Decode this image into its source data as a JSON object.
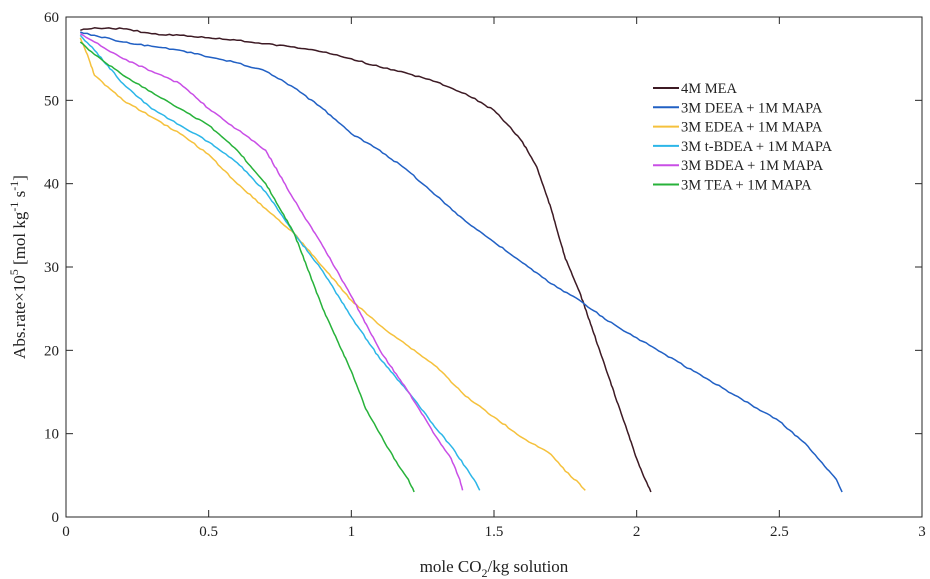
{
  "chart_data": {
    "type": "line",
    "xlabel": {
      "main": "mole CO",
      "sub": "2",
      "rest": "/kg solution"
    },
    "ylabel": {
      "a": "Abs.rate",
      "b": "×10",
      "exp5": "5",
      "c": " [mol kg",
      "expm1a": "-1",
      "d": " s",
      "expm1b": "-1",
      "e": "]"
    },
    "xlim": [
      0,
      3
    ],
    "ylim": [
      0,
      60
    ],
    "xticks": [
      0,
      0.5,
      1,
      1.5,
      2,
      2.5,
      3
    ],
    "xtick_labels": [
      "0",
      "0.5",
      "1",
      "1.5",
      "2",
      "2.5",
      "3"
    ],
    "yticks": [
      0,
      10,
      20,
      30,
      40,
      50,
      60
    ],
    "ytick_labels": [
      "0",
      "10",
      "20",
      "30",
      "40",
      "50",
      "60"
    ],
    "grid": false,
    "legend_position": "top-right",
    "series": [
      {
        "name": "4M MEA",
        "color": "#3d1a24",
        "points": [
          [
            0.05,
            58.4
          ],
          [
            0.1,
            58.7
          ],
          [
            0.2,
            58.6
          ],
          [
            0.3,
            58.0
          ],
          [
            0.4,
            57.8
          ],
          [
            0.5,
            57.5
          ],
          [
            0.6,
            57.2
          ],
          [
            0.7,
            56.8
          ],
          [
            0.8,
            56.4
          ],
          [
            0.9,
            55.8
          ],
          [
            1.0,
            55.0
          ],
          [
            1.1,
            54.0
          ],
          [
            1.2,
            53.2
          ],
          [
            1.3,
            52.2
          ],
          [
            1.4,
            50.8
          ],
          [
            1.5,
            48.8
          ],
          [
            1.55,
            47.0
          ],
          [
            1.6,
            45.0
          ],
          [
            1.65,
            42.0
          ],
          [
            1.7,
            37.0
          ],
          [
            1.75,
            31.0
          ],
          [
            1.8,
            27.0
          ],
          [
            1.85,
            22.0
          ],
          [
            1.9,
            17.0
          ],
          [
            1.95,
            12.0
          ],
          [
            2.0,
            7.0
          ],
          [
            2.03,
            4.5
          ],
          [
            2.05,
            3.0
          ]
        ]
      },
      {
        "name": "3M DEEA + 1M MAPA",
        "color": "#2160c4",
        "points": [
          [
            0.05,
            58.2
          ],
          [
            0.1,
            57.8
          ],
          [
            0.2,
            57.0
          ],
          [
            0.3,
            56.5
          ],
          [
            0.4,
            56.0
          ],
          [
            0.5,
            55.2
          ],
          [
            0.6,
            54.5
          ],
          [
            0.7,
            53.5
          ],
          [
            0.8,
            51.5
          ],
          [
            0.9,
            49.0
          ],
          [
            1.0,
            46.0
          ],
          [
            1.1,
            44.0
          ],
          [
            1.2,
            41.5
          ],
          [
            1.3,
            38.5
          ],
          [
            1.4,
            35.5
          ],
          [
            1.5,
            33.0
          ],
          [
            1.6,
            30.5
          ],
          [
            1.7,
            28.0
          ],
          [
            1.8,
            26.0
          ],
          [
            1.9,
            23.5
          ],
          [
            2.0,
            21.5
          ],
          [
            2.1,
            19.5
          ],
          [
            2.2,
            17.5
          ],
          [
            2.3,
            15.5
          ],
          [
            2.4,
            13.5
          ],
          [
            2.5,
            11.5
          ],
          [
            2.6,
            8.5
          ],
          [
            2.65,
            6.5
          ],
          [
            2.7,
            4.5
          ],
          [
            2.72,
            3.0
          ]
        ]
      },
      {
        "name": "3M EDEA + 1M MAPA",
        "color": "#f5c13c",
        "points": [
          [
            0.05,
            57.5
          ],
          [
            0.08,
            55.0
          ],
          [
            0.1,
            53.0
          ],
          [
            0.2,
            50.0
          ],
          [
            0.3,
            48.0
          ],
          [
            0.4,
            46.0
          ],
          [
            0.5,
            43.5
          ],
          [
            0.6,
            40.0
          ],
          [
            0.7,
            37.0
          ],
          [
            0.8,
            34.0
          ],
          [
            0.9,
            30.0
          ],
          [
            1.0,
            26.0
          ],
          [
            1.1,
            23.0
          ],
          [
            1.2,
            20.5
          ],
          [
            1.3,
            18.0
          ],
          [
            1.4,
            14.5
          ],
          [
            1.5,
            12.0
          ],
          [
            1.6,
            9.5
          ],
          [
            1.7,
            7.5
          ],
          [
            1.75,
            5.5
          ],
          [
            1.8,
            4.0
          ],
          [
            1.82,
            3.2
          ]
        ]
      },
      {
        "name": "3M t-BDEA + 1M MAPA",
        "color": "#2cb6e8",
        "points": [
          [
            0.05,
            57.8
          ],
          [
            0.1,
            56.0
          ],
          [
            0.2,
            52.0
          ],
          [
            0.3,
            49.0
          ],
          [
            0.4,
            47.0
          ],
          [
            0.5,
            45.0
          ],
          [
            0.6,
            42.5
          ],
          [
            0.7,
            39.0
          ],
          [
            0.8,
            34.0
          ],
          [
            0.9,
            29.5
          ],
          [
            1.0,
            24.0
          ],
          [
            1.1,
            19.0
          ],
          [
            1.2,
            15.0
          ],
          [
            1.3,
            10.5
          ],
          [
            1.35,
            8.5
          ],
          [
            1.4,
            6.0
          ],
          [
            1.43,
            4.5
          ],
          [
            1.45,
            3.2
          ]
        ]
      },
      {
        "name": "3M BDEA + 1M MAPA",
        "color": "#c94ee6",
        "points": [
          [
            0.05,
            58.0
          ],
          [
            0.1,
            57.0
          ],
          [
            0.2,
            55.0
          ],
          [
            0.3,
            53.5
          ],
          [
            0.4,
            52.0
          ],
          [
            0.5,
            49.0
          ],
          [
            0.6,
            46.5
          ],
          [
            0.7,
            44.0
          ],
          [
            0.8,
            38.0
          ],
          [
            0.9,
            32.5
          ],
          [
            1.0,
            26.5
          ],
          [
            1.1,
            20.0
          ],
          [
            1.2,
            15.0
          ],
          [
            1.3,
            9.5
          ],
          [
            1.35,
            7.0
          ],
          [
            1.38,
            4.5
          ],
          [
            1.39,
            3.2
          ]
        ]
      },
      {
        "name": "3M TEA + 1M MAPA",
        "color": "#27b23a",
        "points": [
          [
            0.05,
            57.0
          ],
          [
            0.1,
            55.5
          ],
          [
            0.2,
            53.0
          ],
          [
            0.3,
            51.0
          ],
          [
            0.4,
            49.0
          ],
          [
            0.5,
            47.0
          ],
          [
            0.6,
            44.0
          ],
          [
            0.7,
            40.0
          ],
          [
            0.8,
            34.0
          ],
          [
            0.9,
            25.0
          ],
          [
            1.0,
            17.5
          ],
          [
            1.05,
            13.0
          ],
          [
            1.1,
            10.0
          ],
          [
            1.15,
            7.0
          ],
          [
            1.2,
            4.5
          ],
          [
            1.22,
            3.0
          ]
        ]
      }
    ]
  }
}
